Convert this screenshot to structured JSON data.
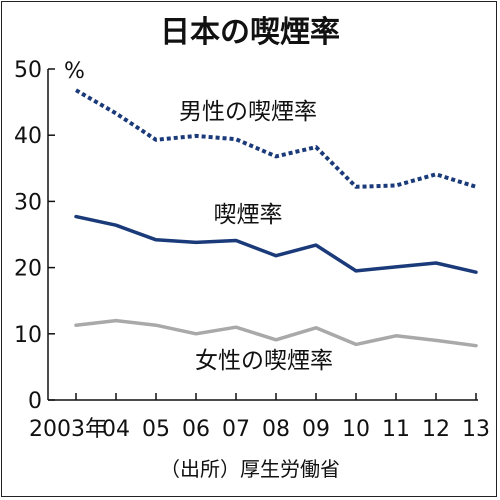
{
  "chart_data": {
    "type": "line",
    "title": "日本の喫煙率",
    "y_unit": "%",
    "source": "（出所）厚生労働省",
    "ylim": [
      0,
      50
    ],
    "yticks": [
      0,
      10,
      20,
      30,
      40,
      50
    ],
    "x_tick_labels": [
      "2003年",
      "04",
      "05",
      "06",
      "07",
      "08",
      "09",
      "10",
      "11",
      "12",
      "13"
    ],
    "x": [
      2003,
      2004,
      2005,
      2006,
      2007,
      2008,
      2009,
      2010,
      2011,
      2012,
      2013
    ],
    "grid": false,
    "legend": "direct labels",
    "series": [
      {
        "name": "男性の喫煙率",
        "color": "#1a3a7a",
        "style": "dotted",
        "values": [
          46.8,
          43.3,
          39.3,
          39.9,
          39.4,
          36.8,
          38.2,
          32.2,
          32.4,
          34.1,
          32.2
        ]
      },
      {
        "name": "喫煙率",
        "color": "#1a3a7a",
        "style": "solid",
        "values": [
          27.7,
          26.4,
          24.2,
          23.8,
          24.1,
          21.8,
          23.4,
          19.5,
          20.1,
          20.7,
          19.3
        ]
      },
      {
        "name": "女性の喫煙率",
        "color": "#a9a9a9",
        "style": "solid",
        "values": [
          11.3,
          12.0,
          11.3,
          10.0,
          11.0,
          9.1,
          10.9,
          8.4,
          9.7,
          9.0,
          8.2
        ]
      }
    ]
  }
}
